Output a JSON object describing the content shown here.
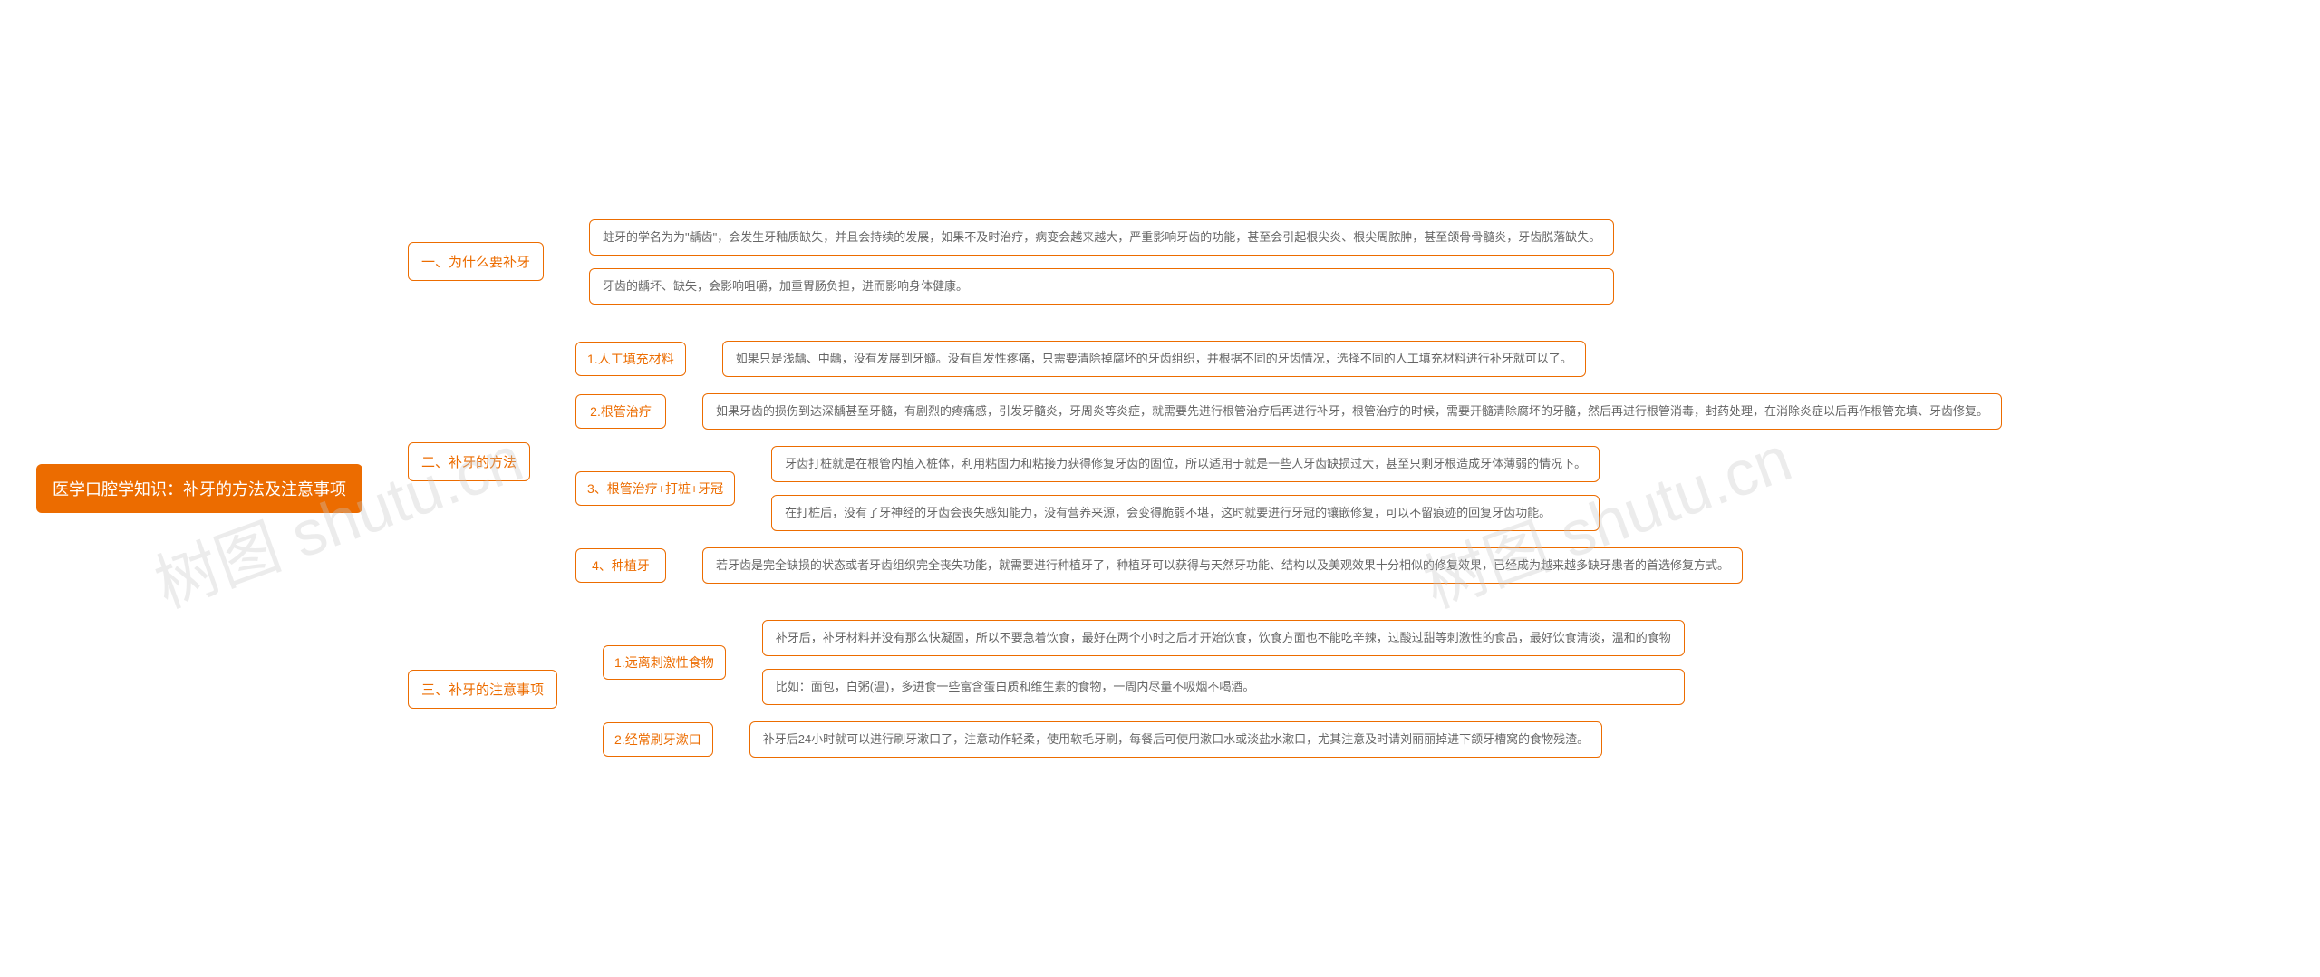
{
  "root": {
    "title": "医学口腔学知识：补牙的方法及注意事项",
    "bg_color": "#ec6c00",
    "text_color": "#ffffff",
    "fontsize": 18
  },
  "watermark": {
    "text": "树图 shutu.cn",
    "color": "rgba(200,200,200,0.35)",
    "fontsize": 70,
    "rotation_deg": -20
  },
  "branch_style": {
    "border_color": "#ec6c00",
    "label_color": "#ec6c00",
    "leaf_text_color": "#666666",
    "background": "#ffffff",
    "border_radius": 6,
    "line_color": "#ec6c00"
  },
  "branches": {
    "b1": {
      "label": "一、为什么要补牙",
      "leaves": [
        "蛀牙的学名为为\"龋齿\"，会发生牙釉质缺失，并且会持续的发展，如果不及时治疗，病变会越来越大，严重影响牙齿的功能，甚至会引起根尖炎、根尖周脓肿，甚至颌骨骨髓炎，牙齿脱落缺失。",
        "牙齿的龋坏、缺失，会影响咀嚼，加重胃肠负担，进而影响身体健康。"
      ]
    },
    "b2": {
      "label": "二、补牙的方法",
      "children": {
        "c1": {
          "label": "1.人工填充材料",
          "leaves": [
            "如果只是浅龋、中龋，没有发展到牙髓。没有自发性疼痛，只需要清除掉腐坏的牙齿组织，并根据不同的牙齿情况，选择不同的人工填充材料进行补牙就可以了。"
          ]
        },
        "c2": {
          "label": "2.根管治疗",
          "leaves": [
            "如果牙齿的损伤到达深龋甚至牙髓，有剧烈的疼痛感，引发牙髓炎，牙周炎等炎症，就需要先进行根管治疗后再进行补牙，根管治疗的时候，需要开髓清除腐坏的牙髓，然后再进行根管消毒，封药处理，在消除炎症以后再作根管充填、牙齿修复。"
          ]
        },
        "c3": {
          "label": "3、根管治疗+打桩+牙冠",
          "leaves": [
            "牙齿打桩就是在根管内植入桩体，利用粘固力和粘接力获得修复牙齿的固位，所以适用于就是一些人牙齿缺损过大，甚至只剩牙根造成牙体薄弱的情况下。",
            "在打桩后，没有了牙神经的牙齿会丧失感知能力，没有营养来源，会变得脆弱不堪，这时就要进行牙冠的镶嵌修复，可以不留痕迹的回复牙齿功能。"
          ]
        },
        "c4": {
          "label": "4、种植牙",
          "leaves": [
            "若牙齿是完全缺损的状态或者牙齿组织完全丧失功能，就需要进行种植牙了，种植牙可以获得与天然牙功能、结构以及美观效果十分相似的修复效果，已经成为越来越多缺牙患者的首选修复方式。"
          ]
        }
      }
    },
    "b3": {
      "label": "三、补牙的注意事项",
      "children": {
        "c1": {
          "label": "1.远离刺激性食物",
          "leaves": [
            "补牙后，补牙材料并没有那么快凝固，所以不要急着饮食，最好在两个小时之后才开始饮食，饮食方面也不能吃辛辣，过酸过甜等刺激性的食品，最好饮食清淡，温和的食物",
            "比如：面包，白粥(温)，多进食一些富含蛋白质和维生素的食物，一周内尽量不吸烟不喝酒。"
          ]
        },
        "c2": {
          "label": "2.经常刷牙漱口",
          "leaves": [
            "补牙后24小时就可以进行刷牙漱口了，注意动作轻柔，使用软毛牙刷，每餐后可使用漱口水或淡盐水漱口，尤其注意及时请刘丽丽掉进下颌牙槽窝的食物残渣。"
          ]
        }
      }
    }
  }
}
